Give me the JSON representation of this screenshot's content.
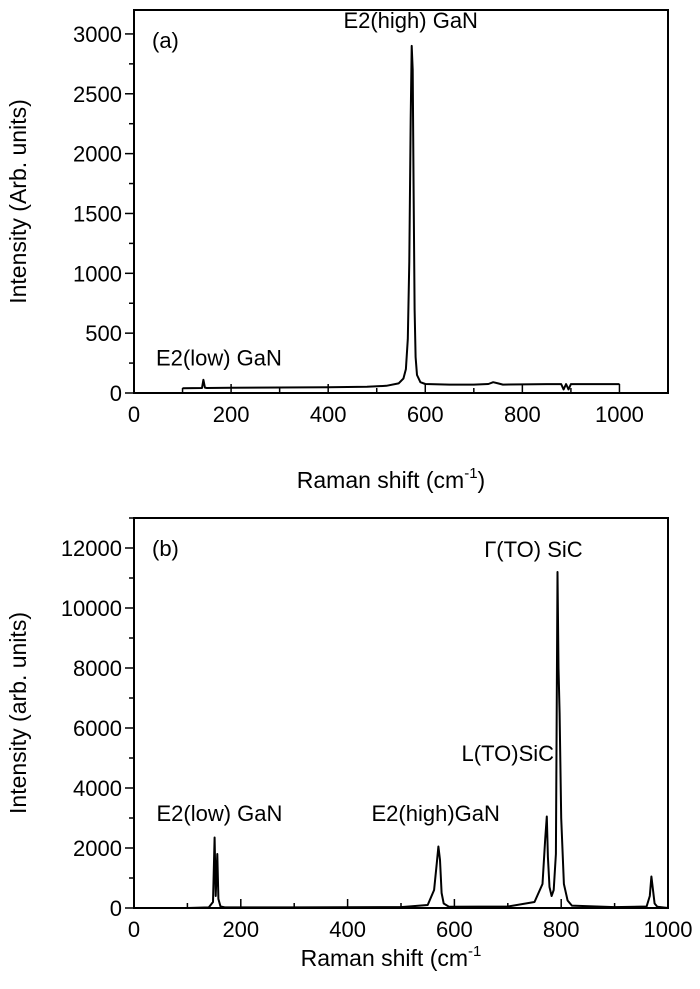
{
  "chart_data": [
    {
      "type": "line",
      "panel_label": "(a)",
      "xlabel": "Raman shift (cm",
      "xlabel_sup": "-1",
      "xlabel_close": ")",
      "ylabel": "Intensity (Arb. units)",
      "xlim": [
        0,
        1100
      ],
      "ylim": [
        0,
        3200
      ],
      "xticks": [
        0,
        200,
        400,
        600,
        800,
        1000
      ],
      "yticks": [
        0,
        500,
        1000,
        1500,
        2000,
        2500,
        3000
      ],
      "xtick_labels": [
        "0",
        "200",
        "400",
        "600",
        "800",
        "1000"
      ],
      "ytick_labels": [
        "0",
        "500",
        "1000",
        "1500",
        "2000",
        "2500",
        "3000"
      ],
      "annotations": [
        {
          "text": "E2(high) GaN",
          "x": 570,
          "y": 3050
        },
        {
          "text": "E2(low) GaN",
          "x": 175,
          "y": 230
        }
      ],
      "series": [
        {
          "x": [
            100,
            140,
            143,
            146,
            150,
            200,
            300,
            400,
            480,
            520,
            545,
            555,
            560,
            564,
            567,
            570,
            572,
            574,
            576,
            578,
            580,
            583,
            590,
            600,
            650,
            700,
            730,
            740,
            750,
            760,
            800,
            850,
            880,
            885,
            890,
            895,
            900,
            950,
            1000
          ],
          "y": [
            40,
            42,
            110,
            45,
            42,
            44,
            46,
            48,
            52,
            60,
            80,
            120,
            200,
            450,
            1100,
            2300,
            2900,
            2700,
            1700,
            700,
            300,
            150,
            90,
            75,
            70,
            70,
            75,
            90,
            80,
            70,
            72,
            74,
            74,
            30,
            74,
            30,
            74,
            74,
            74
          ]
        }
      ]
    },
    {
      "type": "line",
      "panel_label": "(b)",
      "xlabel": "Raman shift (cm",
      "xlabel_sup": "-1",
      "xlabel_close": "",
      "ylabel": "Intensity (arb. units)",
      "xlim": [
        0,
        1000
      ],
      "ylim": [
        0,
        13000
      ],
      "xticks": [
        0,
        200,
        400,
        600,
        800,
        1000
      ],
      "yticks": [
        0,
        2000,
        4000,
        6000,
        8000,
        10000,
        12000
      ],
      "xtick_labels": [
        "0",
        "200",
        "400",
        "600",
        "800",
        "1000"
      ],
      "ytick_labels": [
        "0",
        "2000",
        "4000",
        "6000",
        "8000",
        "10000",
        "12000"
      ],
      "annotations": [
        {
          "text": "Γ(TO) SiC",
          "x": 748,
          "y": 11700
        },
        {
          "text": "L(TO)SiC",
          "x": 700,
          "y": 4900
        },
        {
          "text": "E2(low) GaN",
          "x": 160,
          "y": 2900
        },
        {
          "text": "E2(high)GaN",
          "x": 565,
          "y": 2900
        }
      ],
      "series": [
        {
          "x": [
            0,
            100,
            140,
            148,
            151,
            153,
            156,
            158,
            162,
            170,
            300,
            500,
            550,
            562,
            567,
            570,
            573,
            576,
            580,
            590,
            700,
            750,
            765,
            770,
            773,
            775,
            778,
            782,
            786,
            790,
            793,
            795,
            797,
            800,
            805,
            812,
            820,
            900,
            960,
            966,
            969,
            972,
            975,
            980,
            1000
          ],
          "y": [
            0,
            0,
            20,
            200,
            2350,
            400,
            1800,
            300,
            50,
            20,
            20,
            30,
            100,
            600,
            1500,
            2050,
            1600,
            500,
            150,
            40,
            50,
            200,
            800,
            2300,
            3050,
            1700,
            700,
            400,
            600,
            1800,
            11200,
            8000,
            6500,
            3000,
            800,
            250,
            80,
            30,
            50,
            400,
            1050,
            600,
            150,
            40,
            0
          ]
        }
      ]
    }
  ]
}
